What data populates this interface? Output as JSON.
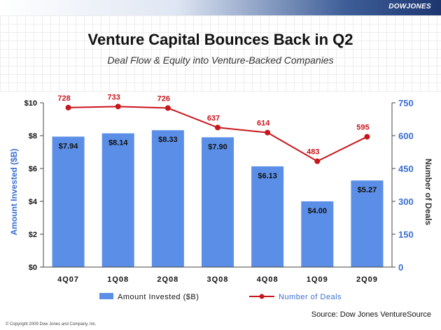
{
  "brand": "DOWJONES",
  "source": "Source: Dow Jones VentureSource",
  "copyright": "© Copyright 2009 Dow Jones and Company, Inc.",
  "chart_data": {
    "type": "bar",
    "title": "Venture Capital Bounces Back in Q2",
    "subtitle": "Deal Flow & Equity into Venture-Backed Companies",
    "categories": [
      "4Q07",
      "1Q08",
      "2Q08",
      "3Q08",
      "4Q08",
      "1Q09",
      "2Q09"
    ],
    "ylabel": "Amount Invested ($B)",
    "y2label": "Number of Deals",
    "ylim": [
      0,
      10
    ],
    "y2lim": [
      0,
      750
    ],
    "yticks": [
      "$0",
      "$2",
      "$4",
      "$6",
      "$8",
      "$10"
    ],
    "y2ticks": [
      "0",
      "150",
      "300",
      "450",
      "600",
      "750"
    ],
    "grid": false,
    "legend": "bottom",
    "series": [
      {
        "name": "Amount Invested ($B)",
        "type": "bar",
        "axis": "left",
        "color": "#5b8ee6",
        "values": [
          7.94,
          8.14,
          8.33,
          7.9,
          6.13,
          4.0,
          5.27
        ],
        "labels": [
          "$7.94",
          "$8.14",
          "$8.33",
          "$7.90",
          "$6.13",
          "$4.00",
          "$5.27"
        ]
      },
      {
        "name": "Number of Deals",
        "type": "line",
        "axis": "right",
        "color": "#c8161d",
        "values": [
          728,
          733,
          726,
          637,
          614,
          483,
          595
        ],
        "labels": [
          "728",
          "733",
          "726",
          "637",
          "614",
          "483",
          "595"
        ]
      }
    ]
  }
}
